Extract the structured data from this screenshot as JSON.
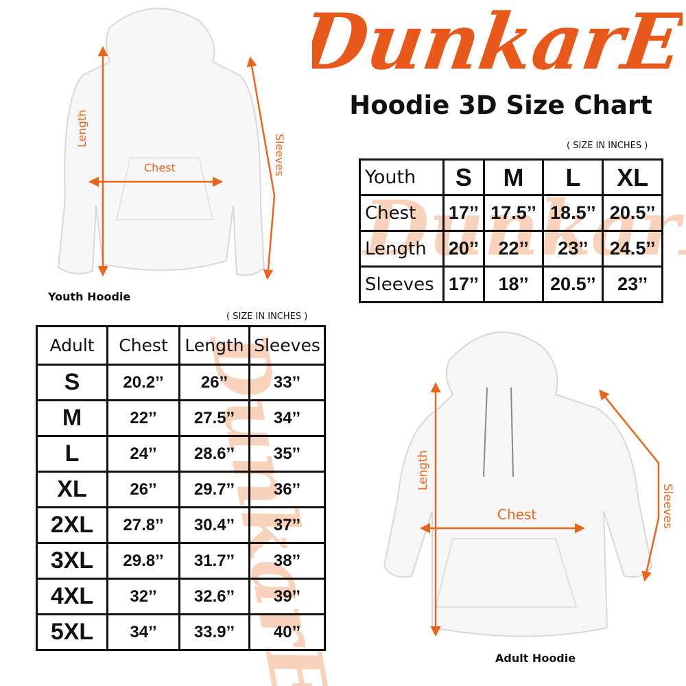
{
  "brand": {
    "logo_text": "DunkarE",
    "color": "#e8581a",
    "watermark_color": "#f3a777"
  },
  "title": "Hoodie 3D Size Chart",
  "youth": {
    "unit_note": "( SIZE IN INCHES )",
    "caption": "Youth Hoodie",
    "diagram_labels": {
      "length": "Length",
      "chest": "Chest",
      "sleeves": "Sleeves"
    },
    "header": [
      "Youth",
      "S",
      "M",
      "L",
      "XL"
    ],
    "rows": [
      {
        "label": "Chest",
        "values": [
          "17’’",
          "17.5’’",
          "18.5’’",
          "20.5’’"
        ]
      },
      {
        "label": "Length",
        "values": [
          "20’’",
          "22’’",
          "23’’",
          "24.5’’"
        ]
      },
      {
        "label": "Sleeves",
        "values": [
          "17’’",
          "18’’",
          "20.5’’",
          "23’’"
        ]
      }
    ]
  },
  "adult": {
    "unit_note": "( SIZE IN INCHES )",
    "caption": "Adult Hoodie",
    "diagram_labels": {
      "length": "Length",
      "chest": "Chest",
      "sleeves": "Sleeves"
    },
    "header": [
      "Adult",
      "Chest",
      "Length",
      "Sleeves"
    ],
    "rows": [
      {
        "size": "S",
        "values": [
          "20.2’’",
          "26’’",
          "33’’"
        ]
      },
      {
        "size": "M",
        "values": [
          "22’’",
          "27.5’’",
          "34’’"
        ]
      },
      {
        "size": "L",
        "values": [
          "24’’",
          "28.6’’",
          "35’’"
        ]
      },
      {
        "size": "XL",
        "values": [
          "26’’",
          "29.7’’",
          "36’’"
        ]
      },
      {
        "size": "2XL",
        "values": [
          "27.8’’",
          "30.4’’",
          "37’’"
        ]
      },
      {
        "size": "3XL",
        "values": [
          "29.8’’",
          "31.7’’",
          "38’’"
        ]
      },
      {
        "size": "4XL",
        "values": [
          "32’’",
          "32.6’’",
          "39’’"
        ]
      },
      {
        "size": "5XL",
        "values": [
          "34’’",
          "33.9’’",
          "40’’"
        ]
      }
    ]
  }
}
